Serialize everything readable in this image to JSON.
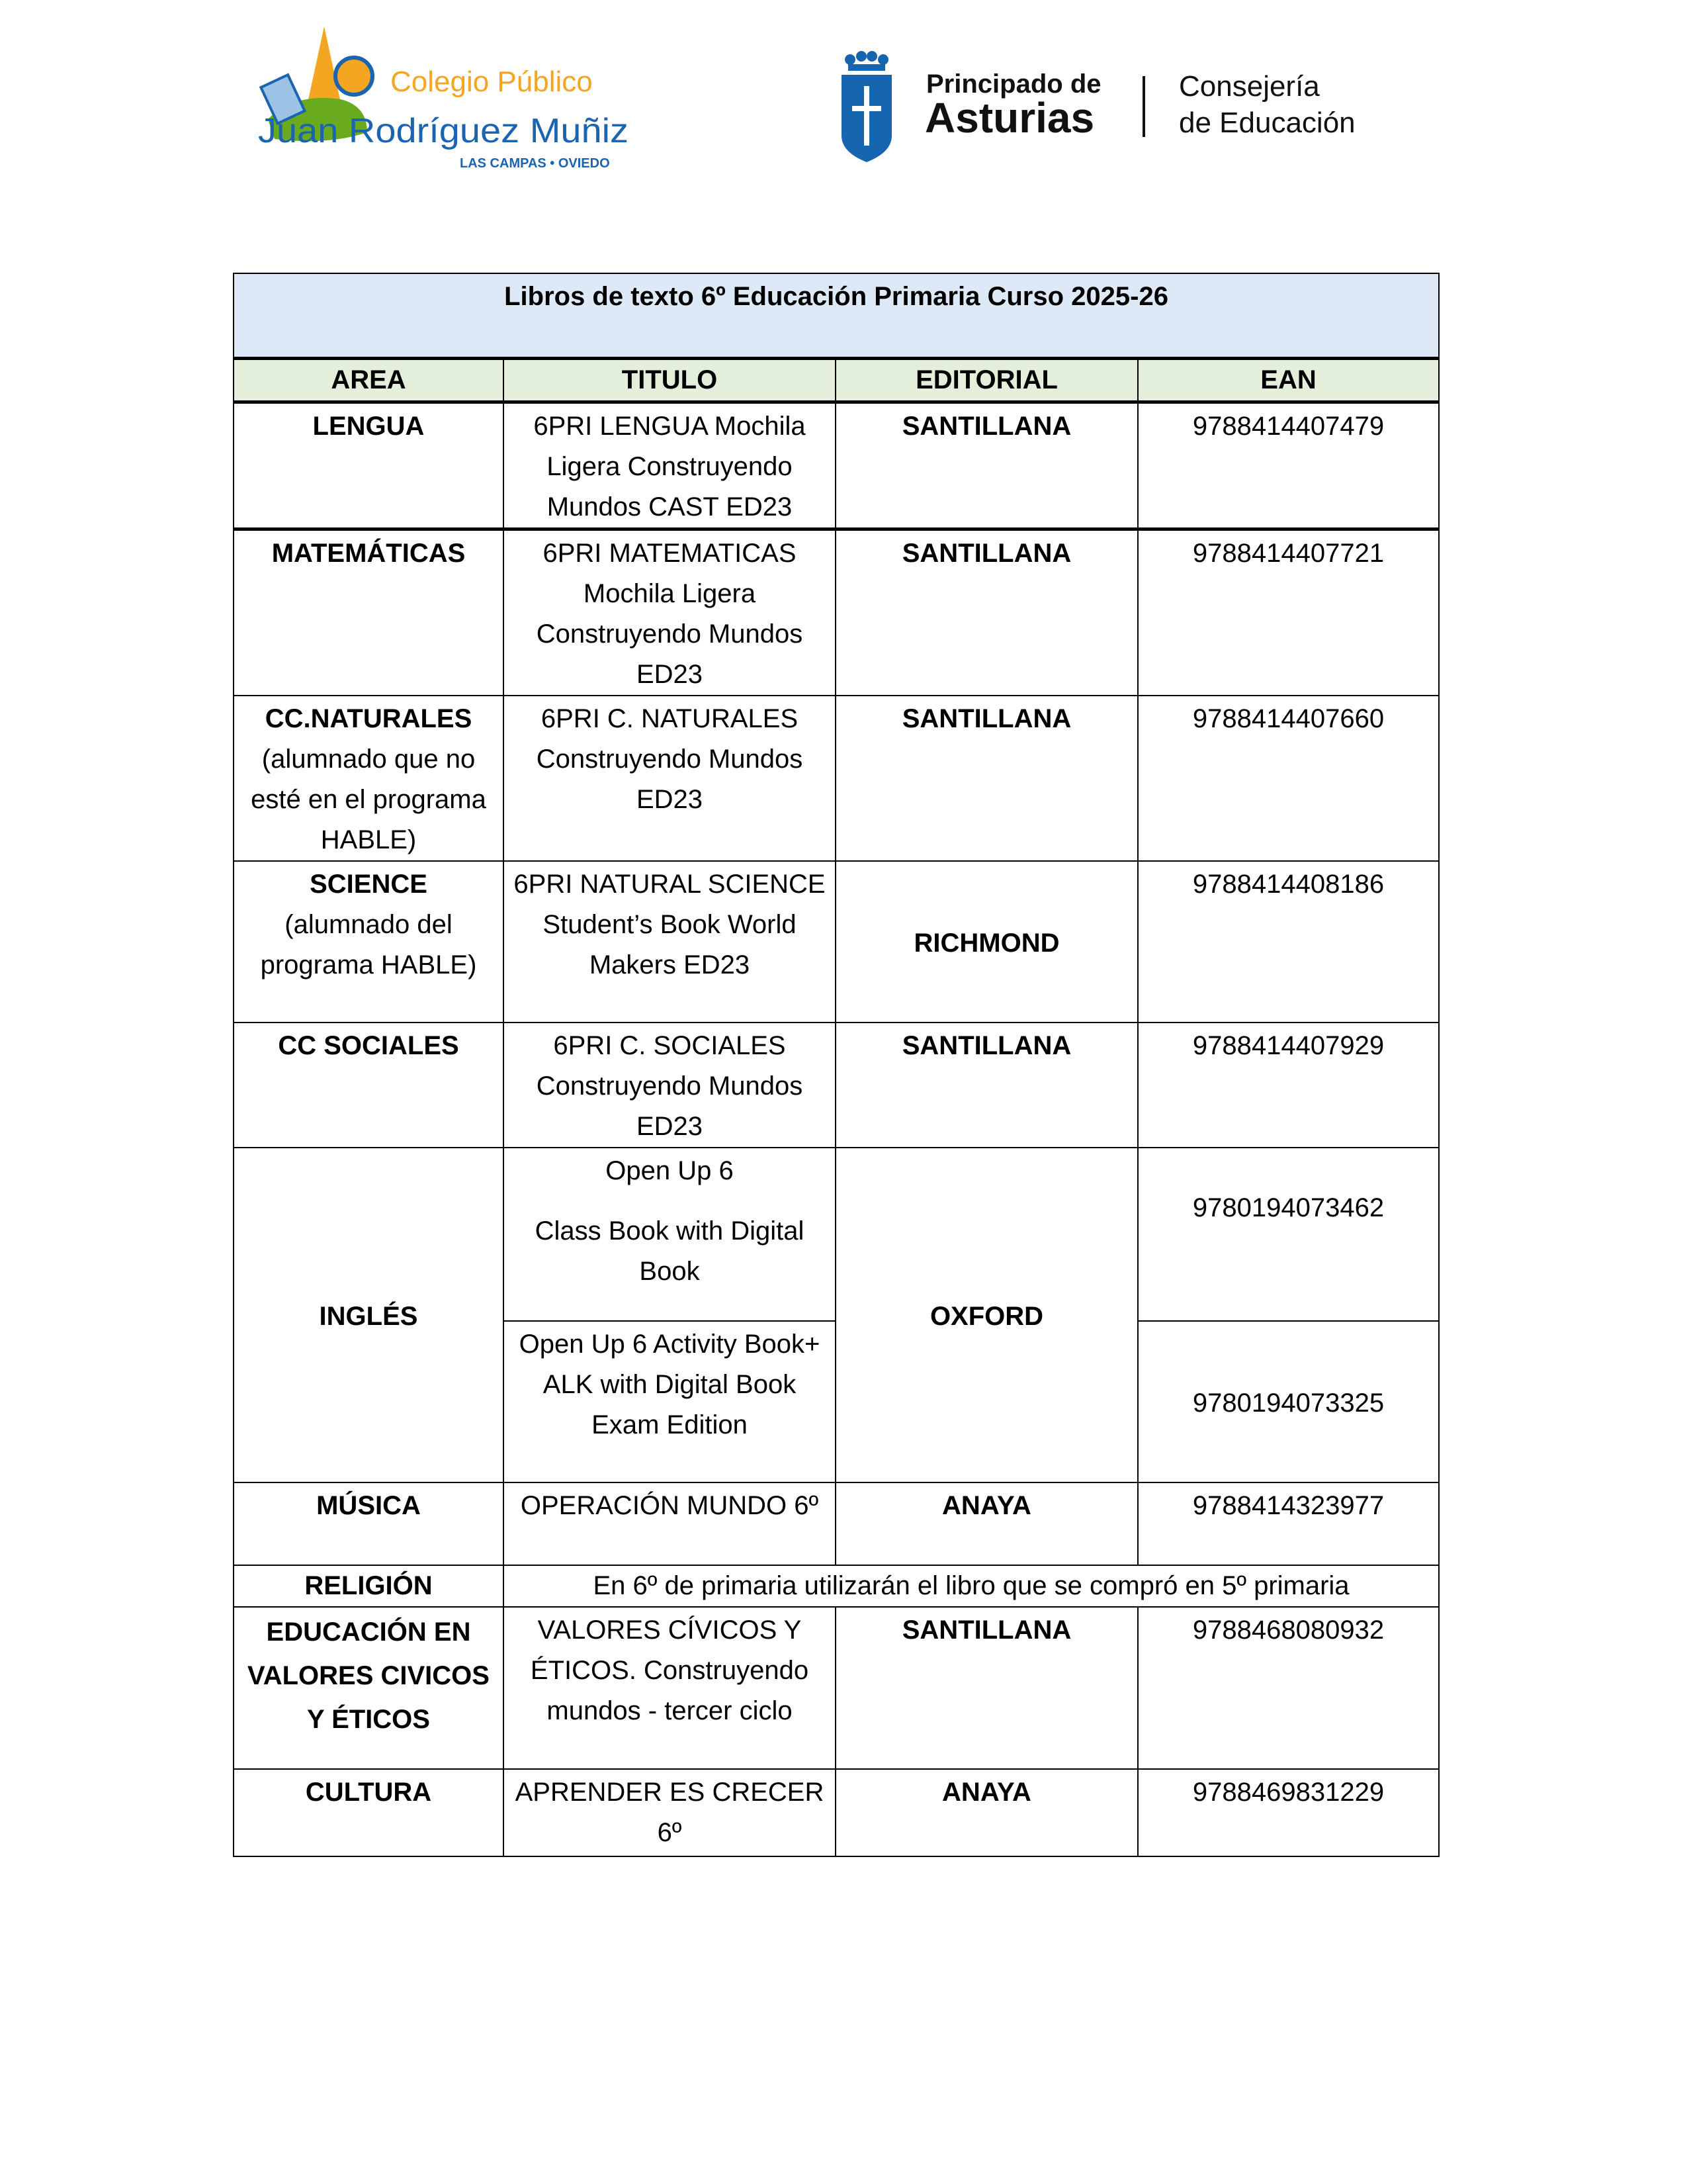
{
  "logos": {
    "school": {
      "line1": "Colegio Público",
      "line2": "Juan Rodríguez Muñiz",
      "line3": "LAS CAMPAS • OVIEDO"
    },
    "government": {
      "line1": "Principado de",
      "line2": "Asturias",
      "line3": "Consejería",
      "line4": "de Educación"
    }
  },
  "table": {
    "title": "Libros de texto 6º Educación Primaria Curso 2025-26",
    "headers": [
      "AREA",
      "TITULO",
      "EDITORIAL",
      "EAN"
    ],
    "rows": [
      {
        "area": "LENGUA",
        "titulo": "6PRI LENGUA Mochila Ligera Construyendo Mundos CAST ED23",
        "editorial": "SANTILLANA",
        "ean": "9788414407479"
      },
      {
        "area": "MATEMÁTICAS",
        "titulo": "6PRI MATEMATICAS Mochila Ligera Construyendo Mundos ED23",
        "editorial": "SANTILLANA",
        "ean": "9788414407721"
      },
      {
        "area": "CC.NATURALES",
        "area_note": "(alumnado que no esté en el programa HABLE)",
        "titulo": "6PRI C. NATURALES Construyendo Mundos ED23",
        "editorial": "SANTILLANA",
        "ean": "9788414407660"
      },
      {
        "area": "SCIENCE",
        "area_note": "(alumnado del programa HABLE)",
        "titulo": "6PRI NATURAL SCIENCE Student’s Book World Makers ED23",
        "editorial": "RICHMOND",
        "ean": "9788414408186"
      },
      {
        "area": "CC SOCIALES",
        "titulo": "6PRI C. SOCIALES Construyendo Mundos ED23",
        "editorial": "SANTILLANA",
        "ean": "9788414407929"
      },
      {
        "area": "INGLÉS",
        "titulo_1a": "Open Up 6",
        "titulo_1b": "Class Book with Digital Book",
        "ean_1": "9780194073462",
        "titulo_2": "Open Up 6 Activity Book+ ALK with Digital Book Exam Edition",
        "ean_2": "9780194073325",
        "editorial": "OXFORD"
      },
      {
        "area": "MÚSICA",
        "titulo": "OPERACIÓN MUNDO 6º",
        "editorial": "ANAYA",
        "ean": "9788414323977"
      },
      {
        "area": "RELIGIÓN",
        "note": "En 6º de primaria utilizarán el libro que se compró en 5º primaria"
      },
      {
        "area": "EDUCACIÓN EN VALORES CIVICOS Y ÉTICOS",
        "titulo": "VALORES CÍVICOS Y ÉTICOS. Construyendo mundos - tercer ciclo",
        "editorial": "SANTILLANA",
        "ean": "9788468080932"
      },
      {
        "area": "CULTURA",
        "titulo": "APRENDER ES CRECER 6º",
        "editorial": "ANAYA",
        "ean": "9788469831229"
      }
    ]
  },
  "colors": {
    "title_bg": "#dde9f6",
    "header_bg": "#e3efda",
    "school_orange": "#f4a623",
    "school_blue": "#1a64b0",
    "school_green": "#6aaa1e",
    "asturias_blue": "#1565b0"
  }
}
